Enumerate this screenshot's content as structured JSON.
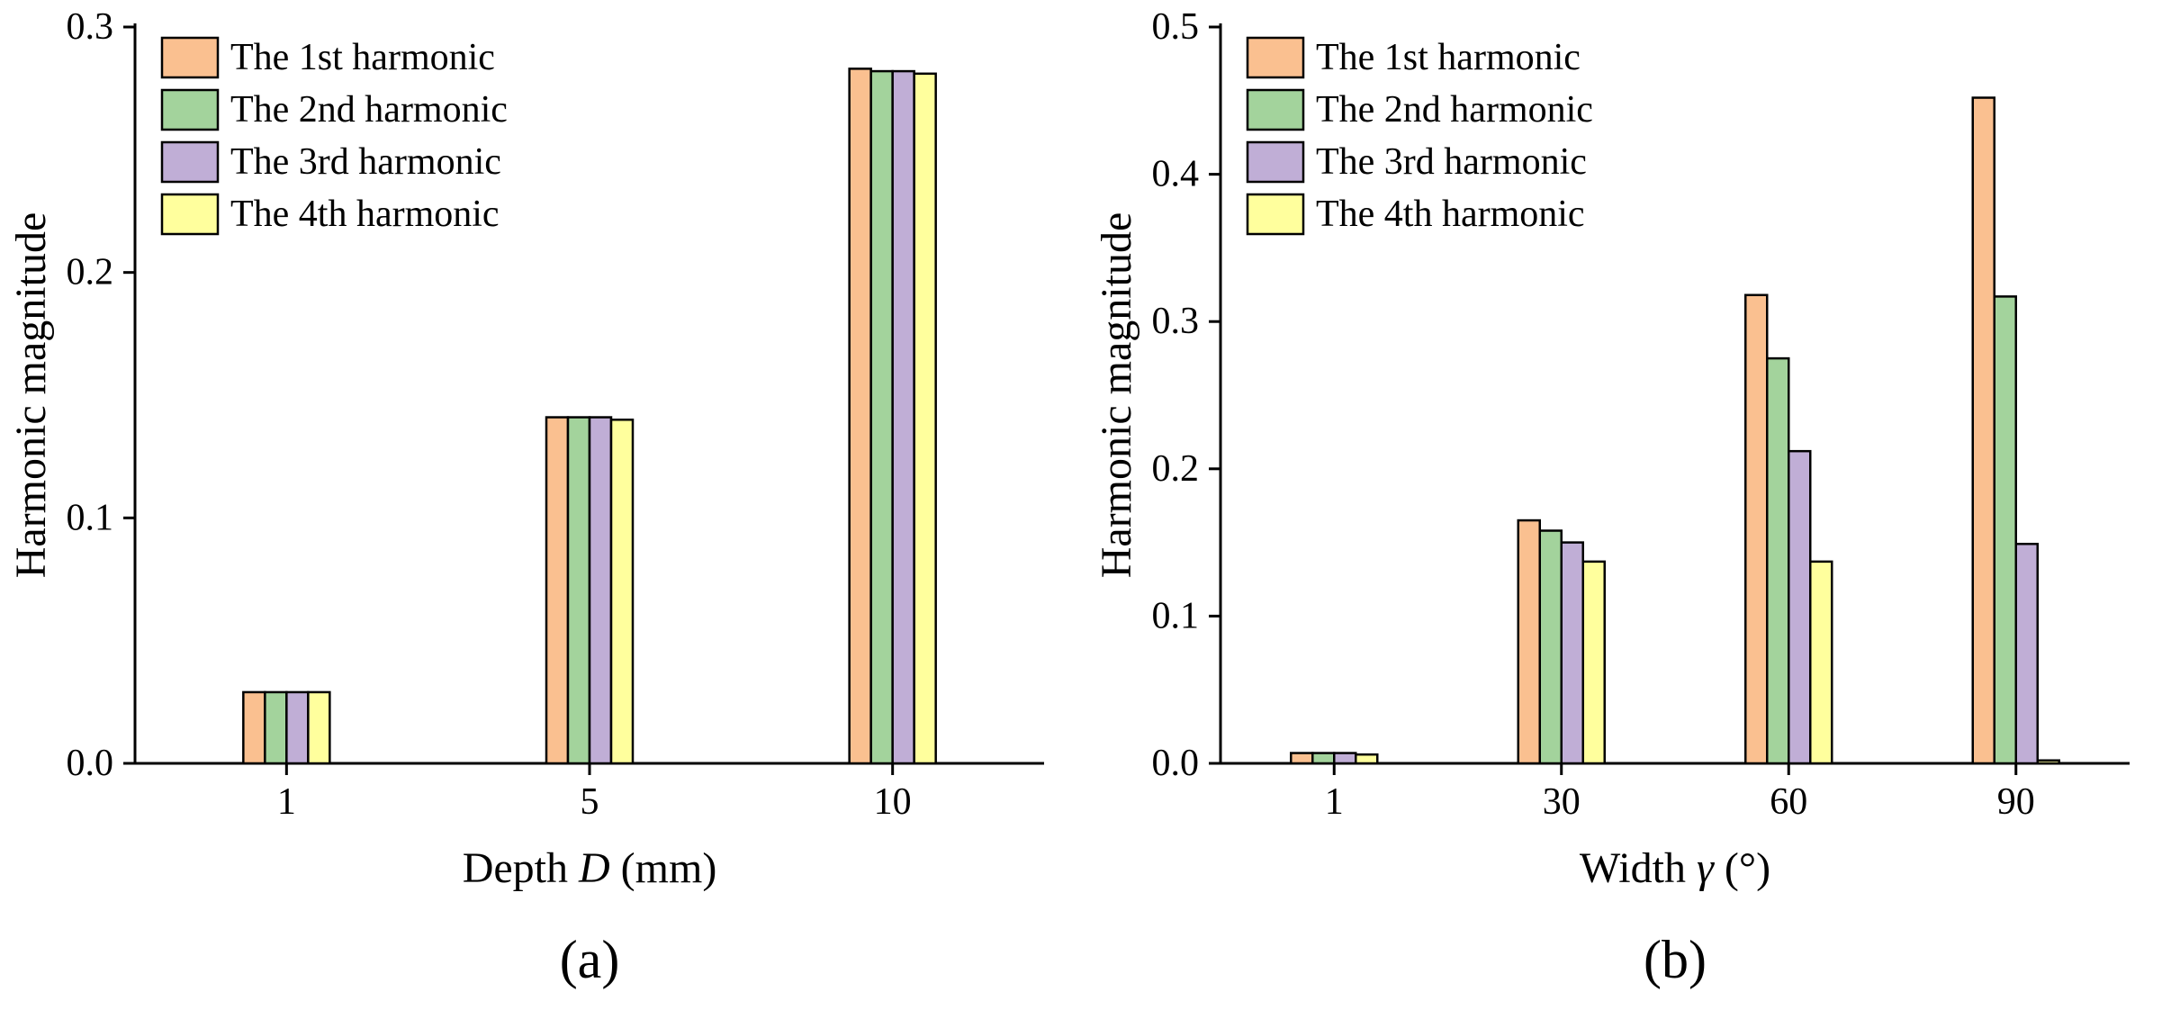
{
  "figure": {
    "background": "#FFFFFF",
    "text_color": "#000000",
    "axis_color": "#000000"
  },
  "chart_data": [
    {
      "type": "bar",
      "panel_label": "(a)",
      "title": "",
      "xlabel": "Depth D (mm)",
      "xlabel_parts": [
        {
          "text": "Depth ",
          "italic": false
        },
        {
          "text": "D",
          "italic": true
        },
        {
          "text": " (mm)",
          "italic": false
        }
      ],
      "ylabel": "Harmonic magnitude",
      "categories": [
        "1",
        "5",
        "10"
      ],
      "series": [
        {
          "name": "The 1st harmonic",
          "color": "#FAC090",
          "values": [
            0.029,
            0.141,
            0.283
          ]
        },
        {
          "name": "The 2nd harmonic",
          "color": "#A3D39C",
          "values": [
            0.029,
            0.141,
            0.282
          ]
        },
        {
          "name": "The 3rd harmonic",
          "color": "#C0AED6",
          "values": [
            0.029,
            0.141,
            0.282
          ]
        },
        {
          "name": "The 4th harmonic",
          "color": "#FFFF9D",
          "values": [
            0.029,
            0.14,
            0.281
          ]
        }
      ],
      "ylim": [
        0,
        0.3
      ],
      "yticks": [
        0.0,
        0.1,
        0.2,
        0.3
      ],
      "legend_position": "top-left",
      "grid": false
    },
    {
      "type": "bar",
      "panel_label": "(b)",
      "title": "",
      "xlabel": "Width γ (°)",
      "xlabel_parts": [
        {
          "text": "Width ",
          "italic": false
        },
        {
          "text": "γ",
          "italic": true
        },
        {
          "text": " (°)",
          "italic": false
        }
      ],
      "ylabel": "Harmonic magnitude",
      "categories": [
        "1",
        "30",
        "60",
        "90"
      ],
      "series": [
        {
          "name": "The 1st harmonic",
          "color": "#FAC090",
          "values": [
            0.007,
            0.165,
            0.318,
            0.452
          ]
        },
        {
          "name": "The 2nd harmonic",
          "color": "#A3D39C",
          "values": [
            0.007,
            0.158,
            0.275,
            0.317
          ]
        },
        {
          "name": "The 3rd harmonic",
          "color": "#C0AED6",
          "values": [
            0.007,
            0.15,
            0.212,
            0.149
          ]
        },
        {
          "name": "The 4th harmonic",
          "color": "#FFFF9D",
          "values": [
            0.006,
            0.137,
            0.137,
            0.002
          ]
        }
      ],
      "ylim": [
        0,
        0.5
      ],
      "yticks": [
        0.0,
        0.1,
        0.2,
        0.3,
        0.4,
        0.5
      ],
      "legend_position": "top-left",
      "grid": false
    }
  ]
}
